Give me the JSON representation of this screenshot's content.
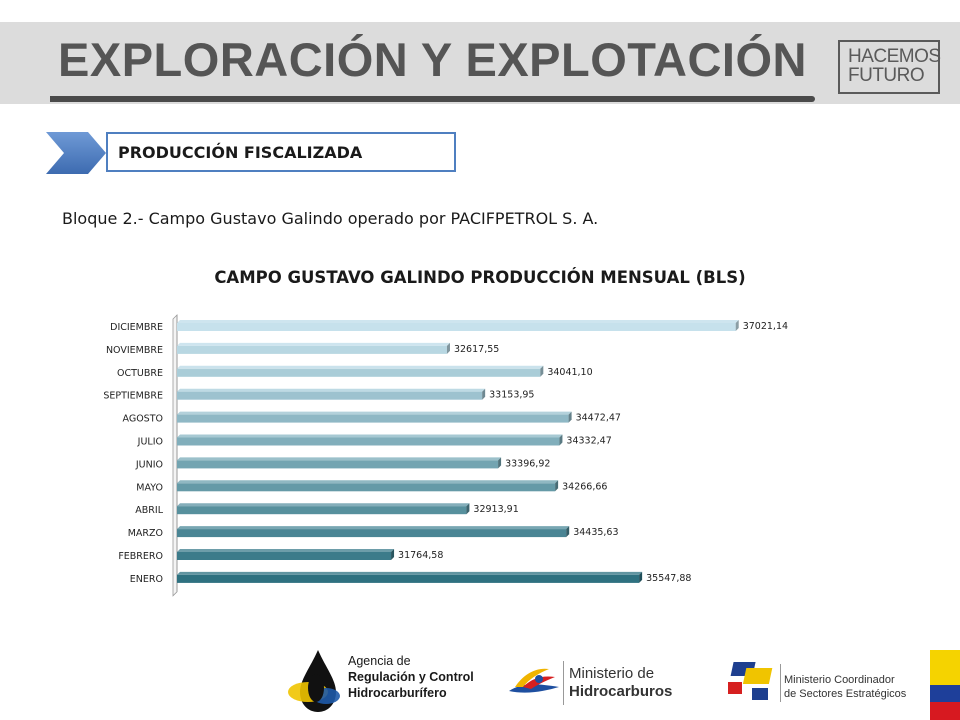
{
  "header": {
    "title": "EXPLORACIÓN Y EXPLOTACIÓN",
    "logo_line1": "HACEMOS",
    "logo_line2": "FUTURO"
  },
  "section": {
    "label": "PRODUCCIÓN FISCALIZADA"
  },
  "subtitle": "Bloque 2.- Campo Gustavo Galindo operado por PACIFPETROL S. A.",
  "chart_data": {
    "type": "bar",
    "orientation": "horizontal",
    "title": "CAMPO GUSTAVO GALINDO PRODUCCIÓN MENSUAL (BLS)",
    "categories": [
      "DICIEMBRE",
      "NOVIEMBRE",
      "OCTUBRE",
      "SEPTIEMBRE",
      "AGOSTO",
      "JULIO",
      "JUNIO",
      "MAYO",
      "ABRIL",
      "MARZO",
      "FEBRERO",
      "ENERO"
    ],
    "values": [
      37021.14,
      32617.55,
      34041.1,
      33153.95,
      34472.47,
      34332.47,
      33396.92,
      34266.66,
      32913.91,
      34435.63,
      31764.58,
      35547.88
    ],
    "value_labels": [
      "37021,14",
      "32617,55",
      "34041,10",
      "33153,95",
      "34472,47",
      "34332,47",
      "33396,92",
      "34266,66",
      "32913,91",
      "34435,63",
      "31764,58",
      "35547,88"
    ],
    "xlim": [
      28500,
      37300
    ],
    "grid": false,
    "colors": {
      "top": "#c6e1ec",
      "bottom": "#2e7180"
    }
  },
  "footer": {
    "arch_line1": "Agencia de",
    "arch_line2": "Regulación y Control",
    "arch_line3": "Hidrocarburífero",
    "mh_line1": "Ministerio de",
    "mh_line2": "Hidrocarburos",
    "mcse_line1": "Ministerio Coordinador",
    "mcse_line2": "de Sectores Estratégicos"
  },
  "colors": {
    "accent_blue": "#4f7fc0",
    "header_gray": "#dcdcdc",
    "title_gray": "#555555"
  }
}
